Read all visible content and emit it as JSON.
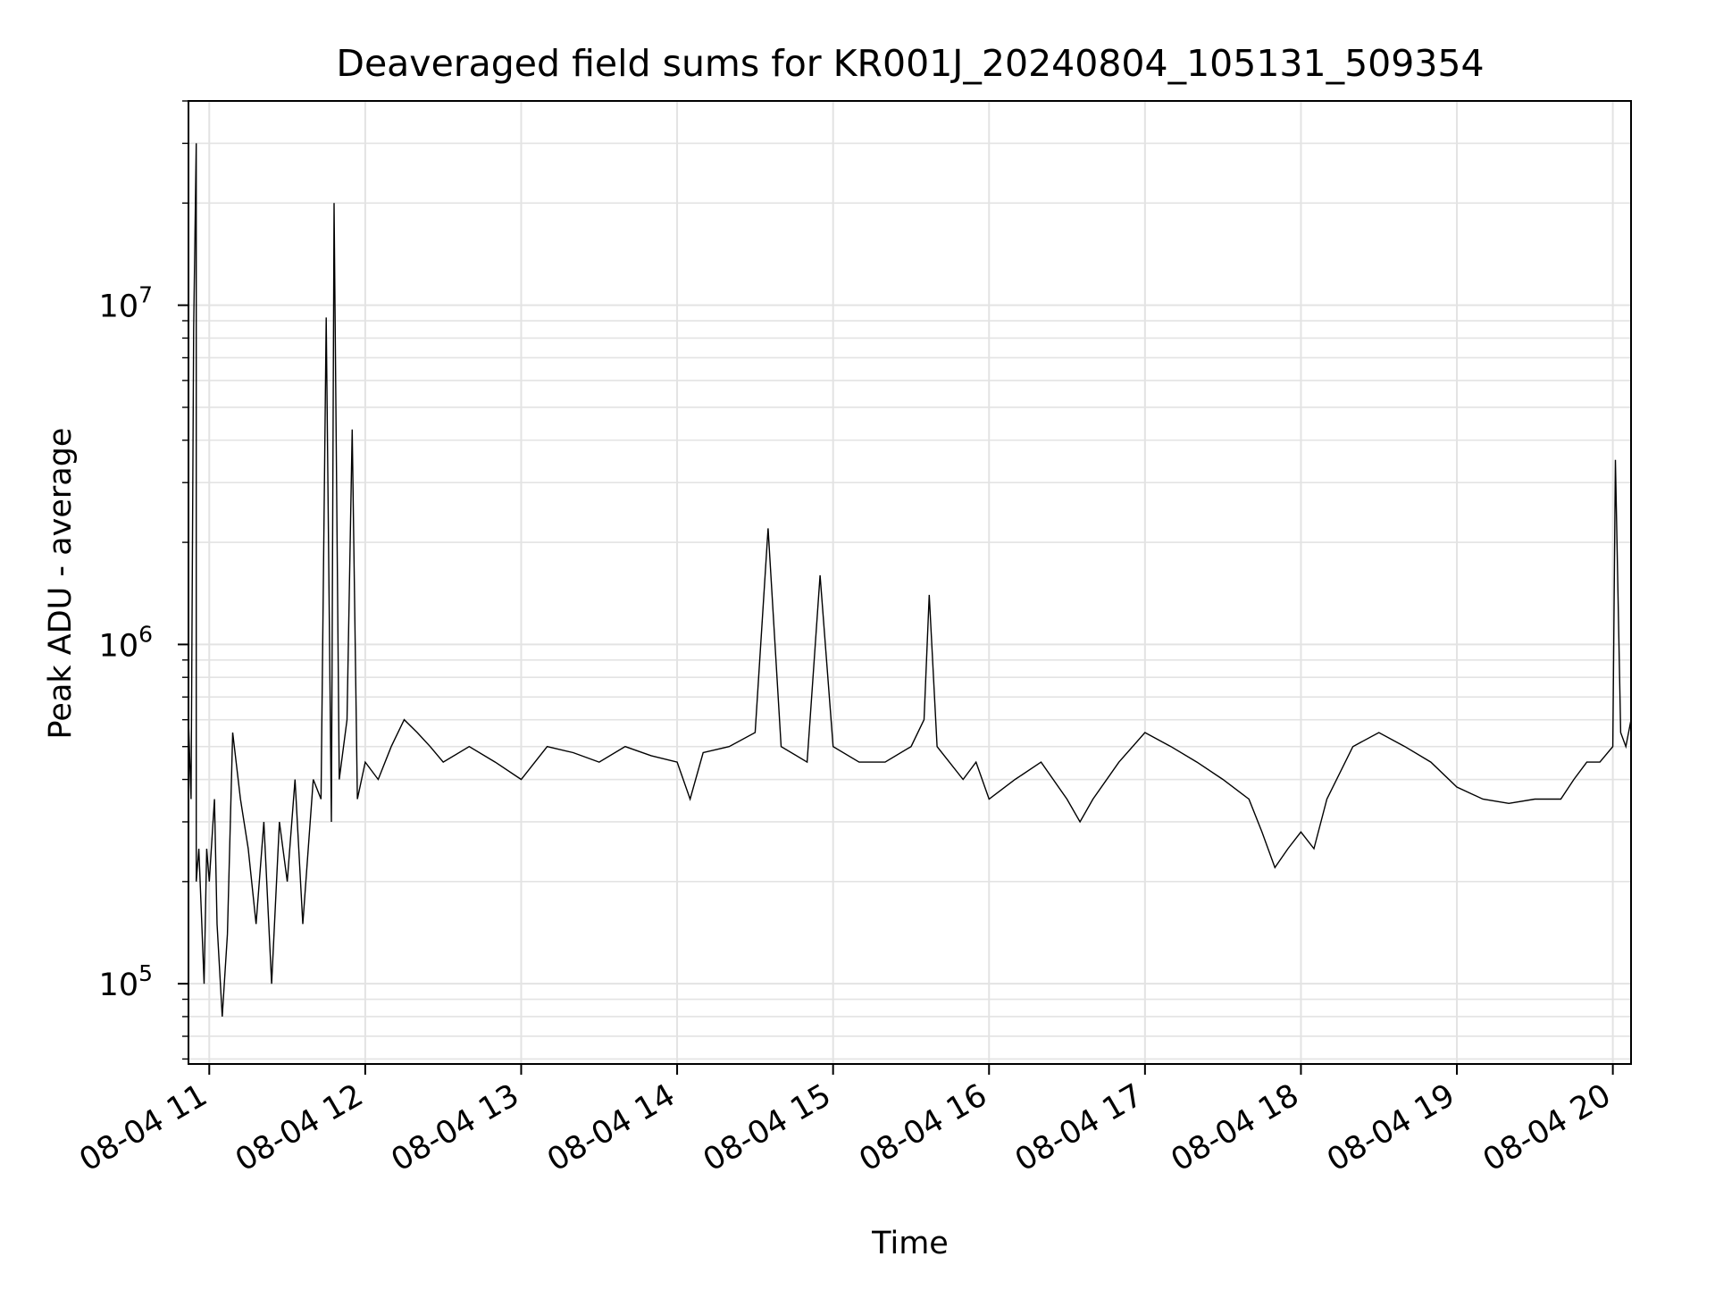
{
  "chart_data": {
    "type": "line",
    "title": "Deaveraged field sums for KR001J_20240804_105131_509354",
    "xlabel": "Time",
    "ylabel": "Peak ADU - average",
    "yscale": "log",
    "ylim": [
      58000,
      40000000
    ],
    "xlim": [
      "2024-08-04 10:52",
      "2024-08-04 20:07"
    ],
    "grid": true,
    "line_color": "#000000",
    "x_ticks": [
      "2024-08-04 11:00",
      "2024-08-04 12:00",
      "2024-08-04 13:00",
      "2024-08-04 14:00",
      "2024-08-04 15:00",
      "2024-08-04 16:00",
      "2024-08-04 17:00",
      "2024-08-04 18:00",
      "2024-08-04 19:00",
      "2024-08-04 20:00"
    ],
    "x_tick_labels": [
      "08-04 11",
      "08-04 12",
      "08-04 13",
      "08-04 14",
      "08-04 15",
      "08-04 16",
      "08-04 17",
      "08-04 18",
      "08-04 19",
      "08-04 20"
    ],
    "y_ticks": [
      {
        "value": 100000,
        "base": "10",
        "exp": "5"
      },
      {
        "value": 1000000,
        "base": "10",
        "exp": "6"
      },
      {
        "value": 10000000,
        "base": "10",
        "exp": "7"
      }
    ],
    "series": [
      {
        "x": [
          "2024-08-04 10:52",
          "2024-08-04 10:53",
          "2024-08-04 10:54",
          "2024-08-04 10:55",
          "2024-08-04 10:55",
          "2024-08-04 10:56",
          "2024-08-04 10:57",
          "2024-08-04 10:58",
          "2024-08-04 10:59",
          "2024-08-04 11:00",
          "2024-08-04 11:02",
          "2024-08-04 11:03",
          "2024-08-04 11:05",
          "2024-08-04 11:07",
          "2024-08-04 11:09",
          "2024-08-04 11:12",
          "2024-08-04 11:15",
          "2024-08-04 11:18",
          "2024-08-04 11:21",
          "2024-08-04 11:24",
          "2024-08-04 11:27",
          "2024-08-04 11:30",
          "2024-08-04 11:33",
          "2024-08-04 11:36",
          "2024-08-04 11:40",
          "2024-08-04 11:43",
          "2024-08-04 11:45",
          "2024-08-04 11:47",
          "2024-08-04 11:48",
          "2024-08-04 11:50",
          "2024-08-04 11:53",
          "2024-08-04 11:55",
          "2024-08-04 11:57",
          "2024-08-04 12:00",
          "2024-08-04 12:05",
          "2024-08-04 12:10",
          "2024-08-04 12:15",
          "2024-08-04 12:20",
          "2024-08-04 12:25",
          "2024-08-04 12:30",
          "2024-08-04 12:40",
          "2024-08-04 12:50",
          "2024-08-04 13:00",
          "2024-08-04 13:10",
          "2024-08-04 13:20",
          "2024-08-04 13:30",
          "2024-08-04 13:40",
          "2024-08-04 13:50",
          "2024-08-04 14:00",
          "2024-08-04 14:05",
          "2024-08-04 14:10",
          "2024-08-04 14:20",
          "2024-08-04 14:30",
          "2024-08-04 14:35",
          "2024-08-04 14:40",
          "2024-08-04 14:50",
          "2024-08-04 14:55",
          "2024-08-04 15:00",
          "2024-08-04 15:10",
          "2024-08-04 15:20",
          "2024-08-04 15:30",
          "2024-08-04 15:35",
          "2024-08-04 15:37",
          "2024-08-04 15:40",
          "2024-08-04 15:50",
          "2024-08-04 15:55",
          "2024-08-04 16:00",
          "2024-08-04 16:10",
          "2024-08-04 16:20",
          "2024-08-04 16:30",
          "2024-08-04 16:35",
          "2024-08-04 16:40",
          "2024-08-04 16:50",
          "2024-08-04 17:00",
          "2024-08-04 17:10",
          "2024-08-04 17:20",
          "2024-08-04 17:30",
          "2024-08-04 17:40",
          "2024-08-04 17:45",
          "2024-08-04 17:50",
          "2024-08-04 17:55",
          "2024-08-04 18:00",
          "2024-08-04 18:05",
          "2024-08-04 18:10",
          "2024-08-04 18:20",
          "2024-08-04 18:30",
          "2024-08-04 18:40",
          "2024-08-04 18:50",
          "2024-08-04 19:00",
          "2024-08-04 19:10",
          "2024-08-04 19:20",
          "2024-08-04 19:30",
          "2024-08-04 19:40",
          "2024-08-04 19:45",
          "2024-08-04 19:50",
          "2024-08-04 19:55",
          "2024-08-04 20:00",
          "2024-08-04 20:01",
          "2024-08-04 20:03",
          "2024-08-04 20:05",
          "2024-08-04 20:07"
        ],
        "y": [
          600000,
          350000,
          8500000,
          30000000,
          200000,
          250000,
          160000,
          100000,
          250000,
          200000,
          350000,
          150000,
          80000,
          140000,
          550000,
          350000,
          250000,
          150000,
          300000,
          100000,
          300000,
          200000,
          400000,
          150000,
          400000,
          350000,
          9200000,
          300000,
          20000000,
          400000,
          600000,
          4300000,
          350000,
          450000,
          400000,
          500000,
          600000,
          550000,
          500000,
          450000,
          500000,
          450000,
          400000,
          500000,
          480000,
          450000,
          500000,
          470000,
          450000,
          350000,
          480000,
          500000,
          550000,
          2200000,
          500000,
          450000,
          1600000,
          500000,
          450000,
          450000,
          500000,
          600000,
          1400000,
          500000,
          400000,
          450000,
          350000,
          400000,
          450000,
          350000,
          300000,
          350000,
          450000,
          550000,
          500000,
          450000,
          400000,
          350000,
          280000,
          220000,
          250000,
          280000,
          250000,
          350000,
          500000,
          550000,
          500000,
          450000,
          380000,
          350000,
          340000,
          350000,
          350000,
          400000,
          450000,
          450000,
          500000,
          3500000,
          550000,
          500000,
          600000
        ]
      }
    ]
  }
}
